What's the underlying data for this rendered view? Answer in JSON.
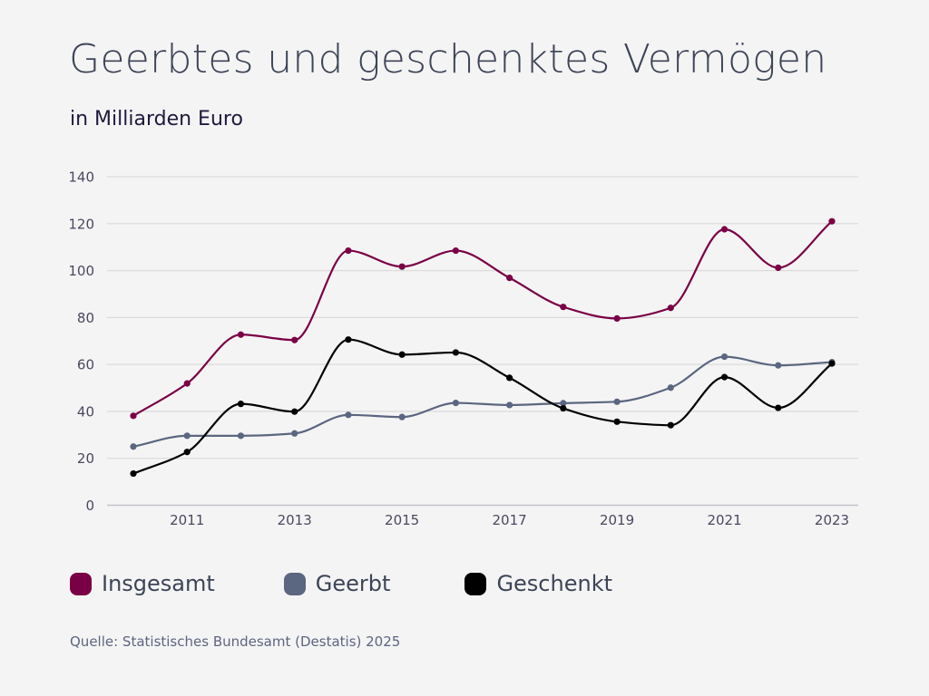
{
  "header": {
    "title": "Geerbtes und geschenktes Vermögen",
    "subtitle": "in Milliarden Euro"
  },
  "footer": {
    "source": "Quelle: Statistisches Bundesamt (Destatis) 2025"
  },
  "chart_data": {
    "type": "line",
    "title": "Geerbtes und geschenktes Vermögen",
    "subtitle": "in Milliarden Euro",
    "xlabel": "",
    "ylabel": "",
    "x": [
      2010,
      2011,
      2012,
      2013,
      2014,
      2015,
      2016,
      2017,
      2018,
      2019,
      2020,
      2021,
      2022,
      2023
    ],
    "x_tick_labels": [
      "2011",
      "2013",
      "2015",
      "2017",
      "2019",
      "2021",
      "2023"
    ],
    "x_tick_values": [
      2011,
      2013,
      2015,
      2017,
      2019,
      2021,
      2023
    ],
    "ylim": [
      0,
      140
    ],
    "y_ticks": [
      0,
      20,
      40,
      60,
      80,
      100,
      120,
      140
    ],
    "grid": true,
    "legend_position": "bottom-left",
    "smooth": true,
    "series": [
      {
        "name": "Insgesamt",
        "color": "#7a0045",
        "values": [
          38.1,
          51.9,
          72.7,
          70.4,
          108.5,
          101.7,
          108.5,
          96.9,
          84.5,
          79.6,
          84.1,
          117.6,
          101.2,
          121.0
        ]
      },
      {
        "name": "Geerbt",
        "color": "#5b6680",
        "values": [
          25.0,
          29.6,
          29.6,
          30.6,
          38.5,
          37.6,
          43.6,
          42.7,
          43.5,
          44.1,
          50.1,
          63.3,
          59.6,
          61.0
        ]
      },
      {
        "name": "Geschenkt",
        "color": "#000000",
        "values": [
          13.5,
          22.7,
          43.2,
          39.9,
          70.6,
          64.2,
          65.1,
          54.3,
          41.3,
          35.6,
          34.1,
          54.6,
          41.5,
          60.4
        ]
      }
    ],
    "source": "Quelle: Statistisches Bundesamt (Destatis) 2025"
  }
}
